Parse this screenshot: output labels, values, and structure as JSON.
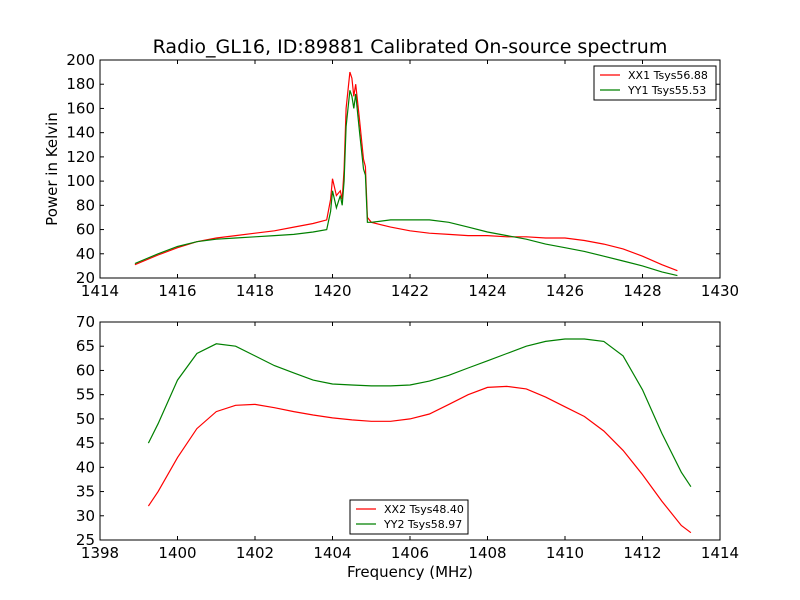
{
  "figure_title": "Radio_GL16, ID:89881 Calibrated On-source spectrum",
  "chart_data": [
    {
      "type": "line",
      "xlim": [
        1414,
        1430
      ],
      "ylim": [
        20,
        200
      ],
      "xticks": [
        1414,
        1416,
        1418,
        1420,
        1422,
        1424,
        1426,
        1428,
        1430
      ],
      "yticks": [
        20,
        40,
        60,
        80,
        100,
        120,
        140,
        160,
        180,
        200
      ],
      "xlabel": "",
      "ylabel": "Power in Kelvin",
      "grid": false,
      "legend_placement": "top-right",
      "series": [
        {
          "name": "XX1 Tsys56.88",
          "color": "#ff0000",
          "x": [
            1414.9,
            1415.5,
            1416.0,
            1416.5,
            1417.0,
            1417.5,
            1418.0,
            1418.5,
            1419.0,
            1419.5,
            1419.85,
            1419.95,
            1420.0,
            1420.1,
            1420.2,
            1420.25,
            1420.3,
            1420.35,
            1420.45,
            1420.5,
            1420.55,
            1420.6,
            1420.7,
            1420.8,
            1420.85,
            1420.9,
            1421.0,
            1421.5,
            1422.0,
            1422.5,
            1423.0,
            1423.5,
            1424.0,
            1424.5,
            1425.0,
            1425.5,
            1426.0,
            1426.5,
            1427.0,
            1427.5,
            1428.0,
            1428.5,
            1428.9
          ],
          "y": [
            31,
            39,
            45,
            50,
            53,
            55,
            57,
            59,
            62,
            65,
            68,
            85,
            102,
            88,
            92,
            85,
            110,
            160,
            190,
            185,
            170,
            180,
            150,
            118,
            112,
            70,
            66,
            62,
            59,
            57,
            56,
            55,
            55,
            54,
            54,
            53,
            53,
            51,
            48,
            44,
            38,
            31,
            26
          ]
        },
        {
          "name": "YY1 Tsys55.53",
          "color": "#008000",
          "x": [
            1414.9,
            1415.5,
            1416.0,
            1416.5,
            1417.0,
            1417.5,
            1418.0,
            1418.5,
            1419.0,
            1419.5,
            1419.85,
            1419.95,
            1420.0,
            1420.1,
            1420.2,
            1420.25,
            1420.3,
            1420.35,
            1420.45,
            1420.5,
            1420.55,
            1420.6,
            1420.7,
            1420.8,
            1420.85,
            1420.9,
            1421.0,
            1421.5,
            1422.0,
            1422.5,
            1423.0,
            1423.5,
            1424.0,
            1424.5,
            1425.0,
            1425.5,
            1426.0,
            1426.5,
            1427.0,
            1427.5,
            1428.0,
            1428.5,
            1428.9
          ],
          "y": [
            32,
            40,
            46,
            50,
            52,
            53,
            54,
            55,
            56,
            58,
            60,
            75,
            92,
            78,
            88,
            80,
            100,
            145,
            175,
            170,
            160,
            172,
            140,
            110,
            105,
            66,
            66,
            68,
            68,
            68,
            66,
            62,
            58,
            55,
            52,
            48,
            45,
            42,
            38,
            34,
            30,
            25,
            22
          ]
        }
      ]
    },
    {
      "type": "line",
      "xlim": [
        1398,
        1414
      ],
      "ylim": [
        25,
        70
      ],
      "xticks": [
        1398,
        1400,
        1402,
        1404,
        1406,
        1408,
        1410,
        1412,
        1414
      ],
      "yticks": [
        25,
        30,
        35,
        40,
        45,
        50,
        55,
        60,
        65,
        70
      ],
      "xlabel": "Frequency (MHz)",
      "ylabel": "",
      "grid": false,
      "legend_placement": "bottom-center",
      "series": [
        {
          "name": "XX2 Tsys48.40",
          "color": "#ff0000",
          "x": [
            1399.25,
            1399.5,
            1400.0,
            1400.5,
            1401.0,
            1401.5,
            1402.0,
            1402.5,
            1403.0,
            1403.5,
            1404.0,
            1404.5,
            1405.0,
            1405.5,
            1406.0,
            1406.5,
            1407.0,
            1407.5,
            1408.0,
            1408.5,
            1409.0,
            1409.5,
            1410.0,
            1410.5,
            1411.0,
            1411.5,
            1412.0,
            1412.5,
            1413.0,
            1413.25
          ],
          "y": [
            32,
            35,
            42,
            48,
            51.5,
            52.8,
            53,
            52.3,
            51.5,
            50.8,
            50.2,
            49.8,
            49.5,
            49.5,
            50,
            51,
            53,
            55,
            56.5,
            56.7,
            56.2,
            54.5,
            52.5,
            50.5,
            47.5,
            43.5,
            38.5,
            33,
            28,
            26.5
          ]
        },
        {
          "name": "YY2 Tsys58.97",
          "color": "#008000",
          "x": [
            1399.25,
            1399.5,
            1400.0,
            1400.5,
            1401.0,
            1401.5,
            1402.0,
            1402.5,
            1403.0,
            1403.5,
            1404.0,
            1404.5,
            1405.0,
            1405.5,
            1406.0,
            1406.5,
            1407.0,
            1407.5,
            1408.0,
            1408.5,
            1409.0,
            1409.5,
            1410.0,
            1410.5,
            1411.0,
            1411.5,
            1412.0,
            1412.5,
            1413.0,
            1413.25
          ],
          "y": [
            45,
            49,
            58,
            63.5,
            65.5,
            65,
            63,
            61,
            59.5,
            58,
            57.2,
            57,
            56.8,
            56.8,
            57,
            57.8,
            59,
            60.5,
            62,
            63.5,
            65,
            66,
            66.5,
            66.5,
            66,
            63,
            56,
            47,
            39,
            36
          ]
        }
      ]
    }
  ]
}
